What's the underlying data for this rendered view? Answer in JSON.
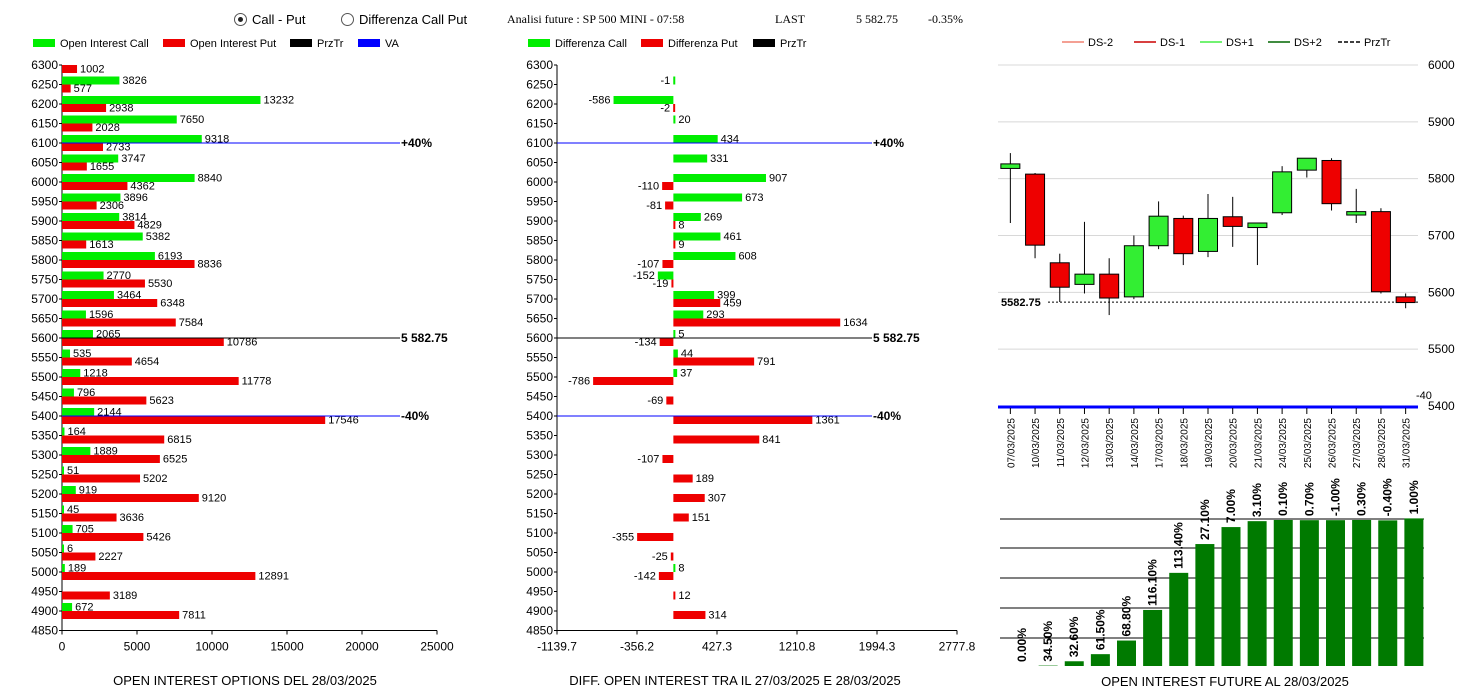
{
  "header": {
    "radio_call_put": "Call - Put",
    "radio_diff": "Differenza Call Put",
    "title": "Analisi future : SP 500 MINI - 07:58",
    "last_label": "LAST",
    "last_value": "5 582.75",
    "last_change": "-0.35%"
  },
  "colors": {
    "call": "#00ee00",
    "put": "#ee0000",
    "price": "#000000",
    "va": "#0000ff",
    "future_bar": "#007a00"
  },
  "chart_data": [
    {
      "type": "bar",
      "orientation": "horizontal",
      "title": "OPEN INTEREST OPTIONS DEL 28/03/2025",
      "legend": [
        "Open Interest Call",
        "Open Interest Put",
        "PrzTr",
        "VA"
      ],
      "strikes": [
        6250,
        6200,
        6150,
        6100,
        6050,
        6000,
        5950,
        5900,
        5850,
        5800,
        5750,
        5700,
        5650,
        5600,
        5550,
        5500,
        5450,
        5400,
        5350,
        5300,
        5250,
        5200,
        5150,
        5100,
        5050,
        5000,
        4950,
        4900
      ],
      "y_ticks": [
        "6300",
        "6250",
        "6200",
        "6150",
        "6100",
        "6050",
        "6000",
        "5950",
        "5900",
        "5850",
        "5800",
        "5750",
        "5700",
        "5650",
        "5600",
        "5550",
        "5500",
        "5450",
        "5400",
        "5350",
        "5300",
        "5250",
        "5200",
        "5150",
        "5100",
        "5050",
        "5000",
        "4950",
        "4900",
        "4850"
      ],
      "x_ticks": [
        "0",
        "5000",
        "10000",
        "15000",
        "20000",
        "25000"
      ],
      "xlim": [
        0,
        25000
      ],
      "series": [
        {
          "name": "Open Interest Call",
          "values": [
            3826,
            13232,
            7650,
            9318,
            3747,
            8840,
            3896,
            3814,
            5382,
            6193,
            2770,
            3464,
            1596,
            2065,
            535,
            1218,
            796,
            2144,
            164,
            1889,
            51,
            919,
            45,
            705,
            6,
            189,
            null,
            672
          ]
        },
        {
          "name": "Open Interest Put",
          "values": [
            577,
            2938,
            2028,
            2733,
            1655,
            4362,
            2306,
            4829,
            1613,
            8836,
            5530,
            6348,
            7584,
            10786,
            4654,
            11778,
            5623,
            17546,
            6815,
            6525,
            5202,
            9120,
            3636,
            5426,
            2227,
            12891,
            3189,
            7811
          ]
        }
      ],
      "top_put": {
        "strike": 6300,
        "value": 1002
      },
      "lines": [
        {
          "strike": 6100,
          "label": "+40%",
          "color": "va"
        },
        {
          "strike": 5600,
          "label": "5 582.75",
          "color": "price"
        },
        {
          "strike": 5400,
          "label": "-40%",
          "color": "va"
        }
      ]
    },
    {
      "type": "bar",
      "orientation": "horizontal",
      "title": "DIFF. OPEN INTEREST TRA IL 27/03/2025 E 28/03/2025",
      "legend": [
        "Differenza Call",
        "Differenza Put",
        "PrzTr"
      ],
      "strikes": [
        6250,
        6200,
        6150,
        6100,
        6050,
        6000,
        5950,
        5900,
        5850,
        5800,
        5750,
        5700,
        5650,
        5600,
        5550,
        5500,
        5450,
        5400,
        5350,
        5300,
        5250,
        5200,
        5150,
        5100,
        5050,
        5000,
        4950,
        4900
      ],
      "y_ticks": [
        "6300",
        "6250",
        "6200",
        "6150",
        "6100",
        "6050",
        "6000",
        "5950",
        "5900",
        "5850",
        "5800",
        "5750",
        "5700",
        "5650",
        "5600",
        "5550",
        "5500",
        "5450",
        "5400",
        "5350",
        "5300",
        "5250",
        "5200",
        "5150",
        "5100",
        "5050",
        "5000",
        "4950",
        "4900",
        "4850"
      ],
      "x_ticks": [
        "-1139.7",
        "-356.2",
        "427.3",
        "1210.8",
        "1994.3",
        "2777.8"
      ],
      "xlim": [
        -1139.7,
        2777.8
      ],
      "series": [
        {
          "name": "Differenza Call",
          "values": [
            -1,
            -586,
            20,
            434,
            331,
            907,
            673,
            269,
            461,
            608,
            -152,
            399,
            293,
            5,
            44,
            37,
            null,
            null,
            null,
            null,
            null,
            null,
            null,
            null,
            null,
            8,
            null,
            null
          ]
        },
        {
          "name": "Differenza Put",
          "values": [
            null,
            -2,
            null,
            null,
            null,
            -110,
            -81,
            8,
            9,
            -107,
            -19,
            459,
            1634,
            -134,
            791,
            -786,
            -69,
            1361,
            841,
            -107,
            189,
            307,
            151,
            -355,
            -25,
            -142,
            12,
            314
          ]
        }
      ],
      "lines": [
        {
          "strike": 6100,
          "label": "+40%",
          "color": "va"
        },
        {
          "strike": 5600,
          "label": "5 582.75",
          "color": "price"
        },
        {
          "strike": 5400,
          "label": "-40%",
          "color": "va"
        }
      ]
    },
    {
      "type": "candlestick",
      "legend": [
        "DS-2",
        "DS-1",
        "DS+1",
        "DS+2",
        "PrzTr"
      ],
      "legend_colors": [
        "#f08070",
        "#cc0000",
        "#44ee44",
        "#006600",
        "#000000"
      ],
      "dates": [
        "07/03/2025",
        "10/03/2025",
        "11/03/2025",
        "12/03/2025",
        "13/03/2025",
        "14/03/2025",
        "17/03/2025",
        "18/03/2025",
        "19/03/2025",
        "20/03/2025",
        "21/03/2025",
        "24/03/2025",
        "25/03/2025",
        "26/03/2025",
        "27/03/2025",
        "28/03/2025",
        "31/03/2025"
      ],
      "candles": [
        {
          "o": 5818,
          "h": 5845,
          "l": 5722,
          "c": 5826
        },
        {
          "o": 5808,
          "h": 5810,
          "l": 5660,
          "c": 5683
        },
        {
          "o": 5652,
          "h": 5668,
          "l": 5583,
          "c": 5609
        },
        {
          "o": 5614,
          "h": 5724,
          "l": 5598,
          "c": 5632
        },
        {
          "o": 5632,
          "h": 5660,
          "l": 5560,
          "c": 5590
        },
        {
          "o": 5592,
          "h": 5700,
          "l": 5588,
          "c": 5682
        },
        {
          "o": 5682,
          "h": 5760,
          "l": 5676,
          "c": 5734
        },
        {
          "o": 5730,
          "h": 5735,
          "l": 5648,
          "c": 5668
        },
        {
          "o": 5672,
          "h": 5773,
          "l": 5662,
          "c": 5730
        },
        {
          "o": 5733,
          "h": 5768,
          "l": 5680,
          "c": 5716
        },
        {
          "o": 5714,
          "h": 5722,
          "l": 5648,
          "c": 5722
        },
        {
          "o": 5740,
          "h": 5822,
          "l": 5736,
          "c": 5812
        },
        {
          "o": 5815,
          "h": 5836,
          "l": 5802,
          "c": 5836
        },
        {
          "o": 5832,
          "h": 5836,
          "l": 5744,
          "c": 5756
        },
        {
          "o": 5736,
          "h": 5782,
          "l": 5722,
          "c": 5742
        },
        {
          "o": 5742,
          "h": 5748,
          "l": 5598,
          "c": 5601
        },
        {
          "o": 5592,
          "h": 5598,
          "l": 5572,
          "c": 5582
        }
      ],
      "ylim": [
        5400,
        6000
      ],
      "y_ticks": [
        "6000",
        "5900",
        "5800",
        "5700",
        "5600",
        "5500",
        "5400"
      ],
      "price_line": {
        "value": 5582.75,
        "label": "5582.75"
      },
      "va_label": "-40"
    },
    {
      "type": "bar",
      "title": "OPEN INTEREST FUTURE AL 28/03/2025",
      "value_labels": [
        "0.00%",
        "34.50%",
        "32.60%",
        "61.50%",
        "68.80%",
        "116.10%",
        "113.40%",
        "27.10%",
        "7.00%",
        "3.10%",
        "0.10%",
        "0.70%",
        "-1.00%",
        "0.30%",
        "-0.40%",
        "1.00%"
      ],
      "values": [
        0,
        2,
        24,
        60,
        129,
        284,
        472,
        618,
        704,
        734,
        740,
        739,
        739,
        740,
        738,
        748
      ]
    }
  ]
}
